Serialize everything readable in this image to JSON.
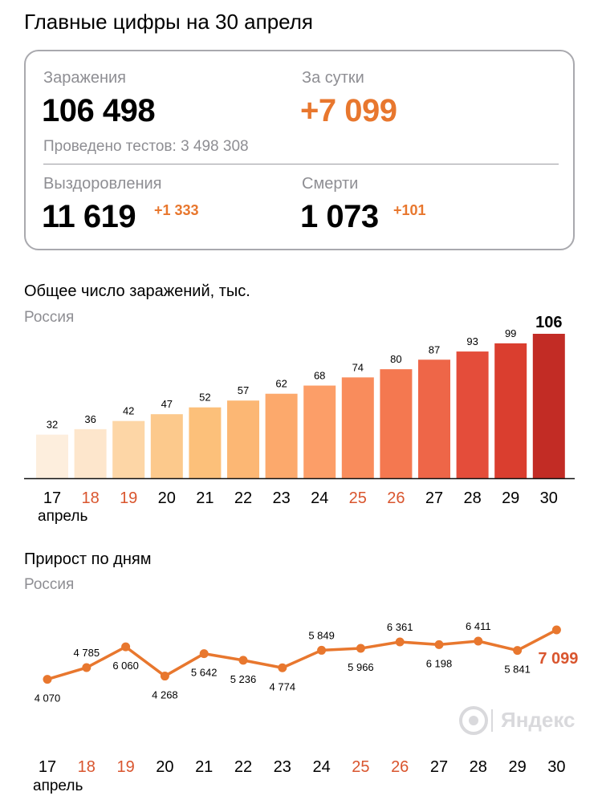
{
  "header": {
    "title": "Главные цифры на 30 апреля"
  },
  "summary": {
    "infections_label": "Заражения",
    "infections_value": "106 498",
    "daily_label": "За сутки",
    "daily_value": "+7 099",
    "tests_text": "Проведено тестов: 3 498 308",
    "recoveries_label": "Выздоровления",
    "recoveries_value": "11 619",
    "recoveries_delta": "+1 333",
    "deaths_label": "Смерти",
    "deaths_value": "1 073",
    "deaths_delta": "+101"
  },
  "logo": {
    "text": "Яндекс",
    "icon": "yandex-logo-icon"
  },
  "colors": {
    "accent": "#e8772e",
    "weekend": "#d9552e",
    "bar_gradient": [
      "#fdeedd",
      "#fde6cc",
      "#fdd6a6",
      "#fcc98c",
      "#fcc07a",
      "#fcb774",
      "#fca96c",
      "#fc9e68",
      "#f98c5c",
      "#f47850",
      "#ee6648",
      "#e44d3a",
      "#da3e2f",
      "#c22c25"
    ]
  },
  "chart_data": [
    {
      "type": "bar",
      "title": "Общее число заражений, тыс.",
      "subtitle": "Россия",
      "categories": [
        "17",
        "18",
        "19",
        "20",
        "21",
        "22",
        "23",
        "24",
        "25",
        "26",
        "27",
        "28",
        "29",
        "30"
      ],
      "month_label": "апрель",
      "weekend_categories": [
        "18",
        "19",
        "25",
        "26"
      ],
      "values": [
        32,
        36,
        42,
        47,
        52,
        57,
        62,
        68,
        74,
        80,
        87,
        93,
        99,
        106
      ],
      "value_labels": [
        "32",
        "36",
        "42",
        "47",
        "52",
        "57",
        "62",
        "68",
        "74",
        "80",
        "87",
        "93",
        "99",
        "106"
      ],
      "highlight_last": true,
      "ylim": [
        0,
        106
      ],
      "grid": false
    },
    {
      "type": "line",
      "title": "Прирост по дням",
      "subtitle": "Россия",
      "categories": [
        "17",
        "18",
        "19",
        "20",
        "21",
        "22",
        "23",
        "24",
        "25",
        "26",
        "27",
        "28",
        "29",
        "30"
      ],
      "month_label": "апрель",
      "weekend_categories": [
        "18",
        "19",
        "25",
        "26"
      ],
      "values": [
        4070,
        4785,
        6060,
        4268,
        5642,
        5236,
        4774,
        5849,
        5966,
        6361,
        6198,
        6411,
        5841,
        7099
      ],
      "value_labels": [
        "4 070",
        "4 785",
        "6 060",
        "4 268",
        "5 642",
        "5 236",
        "4 774",
        "5 849",
        "5 966",
        "6 361",
        "6 198",
        "6 411",
        "5 841",
        "7 099"
      ],
      "label_positions": [
        "below",
        "above",
        "below",
        "below",
        "below",
        "below",
        "below",
        "above",
        "below",
        "above",
        "below",
        "above",
        "below",
        "below"
      ],
      "highlight_last": true,
      "grid": false
    }
  ]
}
